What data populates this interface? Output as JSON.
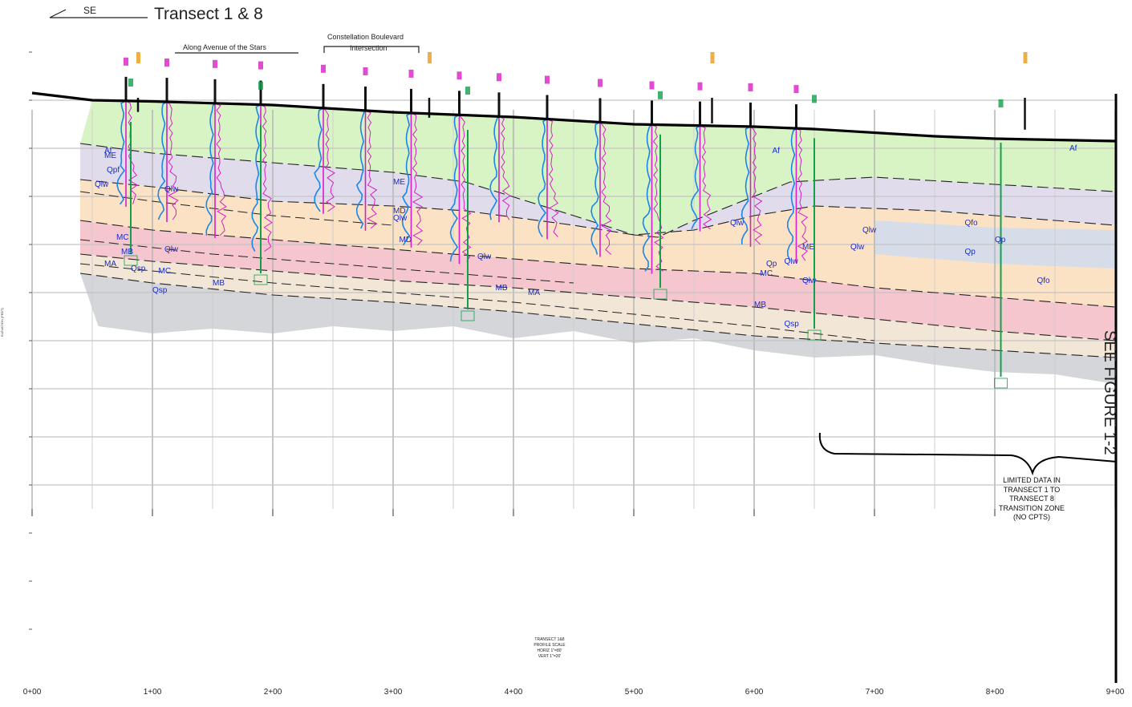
{
  "header": {
    "direction": "SE",
    "title": "Transect 1 & 8",
    "along_label": "Along Avenue of the Stars",
    "intersection_label_1": "Constellation Boulevard",
    "intersection_label_2": "Intersection"
  },
  "side_label": "SEE FIGURE 1-2",
  "note_lines": [
    "LIMITED DATA IN",
    "TRANSECT 1 TO",
    "TRANSECT 8",
    "TRANSITION ZONE",
    "(NO CPTS)"
  ],
  "y_axis_label": "ELEVATION (FEET)",
  "x_ticks": [
    "0+00",
    "1+00",
    "2+00",
    "3+00",
    "4+00",
    "5+00",
    "6+00",
    "7+00",
    "8+00",
    "9+00"
  ],
  "stamp_lines": [
    "TRANSECT 1&8",
    "PROFILE SCALE",
    "HORIZ 1\"=80'",
    "VERT 1\"=20'"
  ],
  "unit_labels": [
    {
      "text": "Af",
      "x": 0.6,
      "y": 278
    },
    {
      "text": "Af",
      "x": 6.15,
      "y": 278
    },
    {
      "text": "Af",
      "x": 8.62,
      "y": 279
    },
    {
      "text": "Qpf",
      "x": 0.62,
      "y": 270
    },
    {
      "text": "Qlw",
      "x": 0.52,
      "y": 264
    },
    {
      "text": "Qlw",
      "x": 1.1,
      "y": 262
    },
    {
      "text": "Qlw",
      "x": 3.0,
      "y": 250
    },
    {
      "text": "Qlw",
      "x": 5.8,
      "y": 248
    },
    {
      "text": "Qlw",
      "x": 6.9,
      "y": 245
    },
    {
      "text": "Qlw",
      "x": 6.8,
      "y": 238
    },
    {
      "text": "Qlw",
      "x": 1.1,
      "y": 237
    },
    {
      "text": "Qlw",
      "x": 3.7,
      "y": 234
    },
    {
      "text": "Qlw",
      "x": 6.25,
      "y": 232
    },
    {
      "text": "Qlw",
      "x": 6.4,
      "y": 224
    },
    {
      "text": "Qsp",
      "x": 0.82,
      "y": 229
    },
    {
      "text": "Qsp",
      "x": 1.0,
      "y": 220
    },
    {
      "text": "Qsp",
      "x": 6.25,
      "y": 206
    },
    {
      "text": "Qfo",
      "x": 7.75,
      "y": 248
    },
    {
      "text": "Qp",
      "x": 7.75,
      "y": 236
    },
    {
      "text": "Qp",
      "x": 6.1,
      "y": 231
    },
    {
      "text": "Qfo",
      "x": 8.35,
      "y": 224
    },
    {
      "text": "Qp",
      "x": 8.0,
      "y": 241
    },
    {
      "text": "ME",
      "x": 0.6,
      "y": 276
    },
    {
      "text": "MC",
      "x": 0.7,
      "y": 242
    },
    {
      "text": "MC",
      "x": 1.05,
      "y": 228
    },
    {
      "text": "MC",
      "x": 6.05,
      "y": 227
    },
    {
      "text": "MD",
      "x": 3.05,
      "y": 241
    },
    {
      "text": "MD",
      "x": 3.0,
      "y": 253
    },
    {
      "text": "ME",
      "x": 3.0,
      "y": 265
    },
    {
      "text": "ME",
      "x": 6.4,
      "y": 238
    },
    {
      "text": "MB",
      "x": 0.74,
      "y": 236
    },
    {
      "text": "MA",
      "x": 0.6,
      "y": 231
    },
    {
      "text": "MB",
      "x": 1.5,
      "y": 223
    },
    {
      "text": "MB",
      "x": 3.85,
      "y": 221
    },
    {
      "text": "MB",
      "x": 6.0,
      "y": 214
    },
    {
      "text": "MA",
      "x": 4.12,
      "y": 219
    }
  ],
  "colors": {
    "fill_af": "#d8f4c4",
    "fill_lav": "#e0dcec",
    "fill_peach": "#fbe2c4",
    "fill_pink": "#f6c6ce",
    "fill_tan": "#f2e6d6",
    "fill_gray": "#d4d6d9",
    "fill_bluegray": "#d6dde8",
    "label_blue": "#1a2cc8",
    "cpt_blue": "#1b86ea",
    "cpt_magenta": "#d81ec8",
    "boring_green": "#13a04a",
    "label_orange": "#e89a18"
  }
}
